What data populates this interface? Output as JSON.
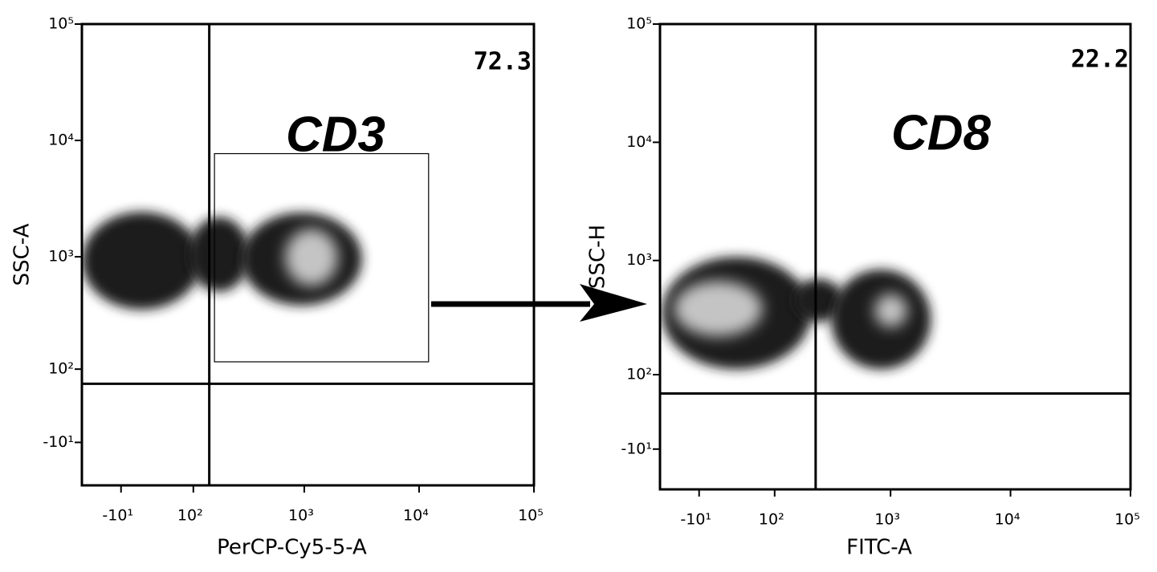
{
  "chart_data": [
    {
      "type": "density",
      "xlabel": "PerCP-Cy5-5-A",
      "ylabel": "SSC-A",
      "annotation": "CD3",
      "quadrant_value": 72.3,
      "xscale": "biexponential",
      "yscale": "biexponential",
      "xlim": [
        -66,
        100000
      ],
      "ylim": [
        -72,
        100000
      ],
      "xticks": [
        {
          "value": -10,
          "label": "-10¹"
        },
        {
          "value": 100,
          "label": "10²"
        },
        {
          "value": 1000,
          "label": "10³"
        },
        {
          "value": 10000,
          "label": "10⁴"
        },
        {
          "value": 100000,
          "label": "10⁵"
        }
      ],
      "yticks": [
        {
          "value": -10,
          "label": "-10¹"
        },
        {
          "value": 100,
          "label": "10²"
        },
        {
          "value": 1000,
          "label": "10³"
        },
        {
          "value": 10000,
          "label": "10⁴"
        },
        {
          "value": 100000,
          "label": "10⁵"
        }
      ],
      "gate": {
        "x": 143,
        "y": 70
      },
      "gate_box": {
        "x": [
          160,
          12100
        ],
        "y": [
          118,
          7700
        ]
      },
      "color": "#1c1c1c",
      "core_color": "#c4c4c4",
      "populations": [
        {
          "x": [
            -66,
            120
          ],
          "y": [
            350,
            2430
          ]
        },
        {
          "x": [
            90,
            330
          ],
          "y": [
            500,
            2200
          ]
        },
        {
          "x": [
            280,
            3180
          ],
          "y": [
            380,
            2400
          ],
          "core": {
            "x": [
              680,
              1960
            ],
            "y": [
              560,
              1740
            ]
          }
        }
      ]
    },
    {
      "type": "density",
      "xlabel": "FITC-A",
      "ylabel": "SSC-H",
      "annotation": "CD8",
      "quadrant_value": 22.2,
      "xscale": "biexponential",
      "yscale": "biexponential",
      "xlim": [
        -63,
        100000
      ],
      "ylim": [
        -66,
        100000
      ],
      "xticks": [
        {
          "value": -10,
          "label": "-10¹"
        },
        {
          "value": 100,
          "label": "10²"
        },
        {
          "value": 1000,
          "label": "10³"
        },
        {
          "value": 10000,
          "label": "10⁴"
        },
        {
          "value": 100000,
          "label": "10⁵"
        }
      ],
      "yticks": [
        {
          "value": -10,
          "label": "-10¹"
        },
        {
          "value": 100,
          "label": "10²"
        },
        {
          "value": 1000,
          "label": "10³"
        },
        {
          "value": 10000,
          "label": "10⁴"
        },
        {
          "value": 100000,
          "label": "10⁵"
        }
      ],
      "gate": {
        "x": 234,
        "y": 63
      },
      "color": "#1c1c1c",
      "core_color": "#c4c4c4",
      "populations": [
        {
          "x": [
            -60,
            214
          ],
          "y": [
            113,
            1075
          ],
          "core": {
            "x": [
              -42,
              75
            ],
            "y": [
              225,
              670
            ]
          }
        },
        {
          "x": [
            150,
            400
          ],
          "y": [
            300,
            700
          ]
        },
        {
          "x": [
            317,
            2170
          ],
          "y": [
            113,
            840
          ],
          "core": {
            "x": [
              735,
              1380
            ],
            "y": [
              270,
              520
            ]
          }
        }
      ]
    }
  ]
}
